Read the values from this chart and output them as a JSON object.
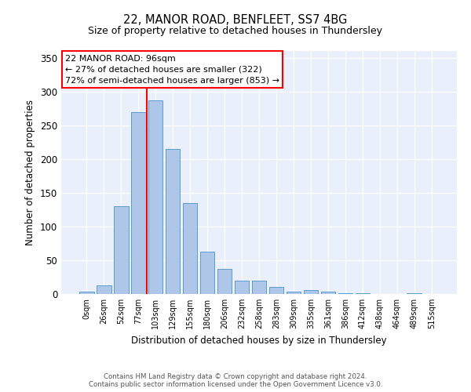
{
  "title1": "22, MANOR ROAD, BENFLEET, SS7 4BG",
  "title2": "Size of property relative to detached houses in Thundersley",
  "xlabel": "Distribution of detached houses by size in Thundersley",
  "ylabel": "Number of detached properties",
  "bin_labels": [
    "0sqm",
    "26sqm",
    "52sqm",
    "77sqm",
    "103sqm",
    "129sqm",
    "155sqm",
    "180sqm",
    "206sqm",
    "232sqm",
    "258sqm",
    "283sqm",
    "309sqm",
    "335sqm",
    "361sqm",
    "386sqm",
    "412sqm",
    "438sqm",
    "464sqm",
    "489sqm",
    "515sqm"
  ],
  "bar_values": [
    3,
    13,
    130,
    270,
    287,
    215,
    135,
    63,
    37,
    20,
    20,
    11,
    3,
    6,
    3,
    1,
    1,
    0,
    0,
    1,
    0
  ],
  "bar_color": "#aec6e8",
  "bar_edgecolor": "#5b9bd5",
  "bg_color": "#eaf0fb",
  "grid_color": "#ffffff",
  "vline_x": 3.5,
  "vline_color": "red",
  "annotation_text": "22 MANOR ROAD: 96sqm\n← 27% of detached houses are smaller (322)\n72% of semi-detached houses are larger (853) →",
  "annotation_box_edgecolor": "red",
  "footer1": "Contains HM Land Registry data © Crown copyright and database right 2024.",
  "footer2": "Contains public sector information licensed under the Open Government Licence v3.0.",
  "ylim": [
    0,
    360
  ],
  "yticks": [
    0,
    50,
    100,
    150,
    200,
    250,
    300,
    350
  ]
}
